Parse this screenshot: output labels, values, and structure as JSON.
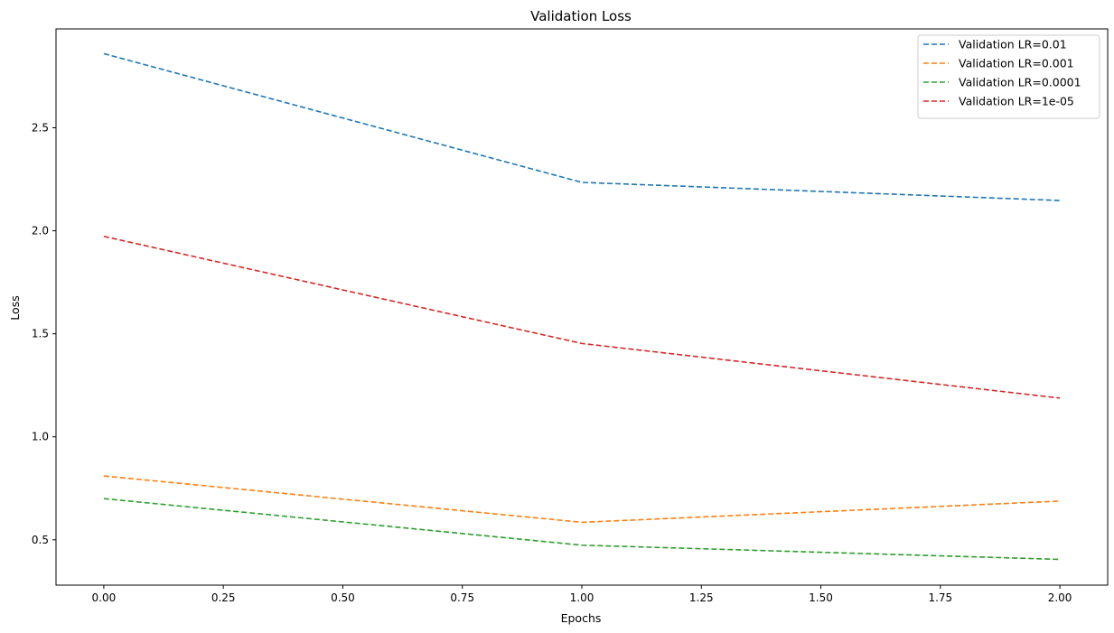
{
  "chart_data": {
    "type": "line",
    "title": "Validation Loss",
    "xlabel": "Epochs",
    "ylabel": "Loss",
    "xlim": [
      -0.1,
      2.1
    ],
    "ylim": [
      0.28,
      2.98
    ],
    "xticks": [
      0.0,
      0.25,
      0.5,
      0.75,
      1.0,
      1.25,
      1.5,
      1.75,
      2.0
    ],
    "xtick_labels": [
      "0.00",
      "0.25",
      "0.50",
      "0.75",
      "1.00",
      "1.25",
      "1.50",
      "1.75",
      "2.00"
    ],
    "yticks": [
      0.5,
      1.0,
      1.5,
      2.0,
      2.5
    ],
    "ytick_labels": [
      "0.5",
      "1.0",
      "1.5",
      "2.0",
      "2.5"
    ],
    "grid": false,
    "legend_position": "top-right",
    "line_style": "dashed",
    "x": [
      0,
      1,
      2
    ],
    "series": [
      {
        "name": "Validation LR=0.01",
        "color": "#1f77b4",
        "values": [
          2.86,
          2.235,
          2.147
        ]
      },
      {
        "name": "Validation LR=0.001",
        "color": "#ff7f0e",
        "values": [
          0.81,
          0.585,
          0.688
        ]
      },
      {
        "name": "Validation LR=0.0001",
        "color": "#2ca02c",
        "values": [
          0.7,
          0.474,
          0.405
        ]
      },
      {
        "name": "Validation LR=1e-05",
        "color": "#d62728",
        "values": [
          1.973,
          1.453,
          1.188
        ]
      }
    ]
  }
}
